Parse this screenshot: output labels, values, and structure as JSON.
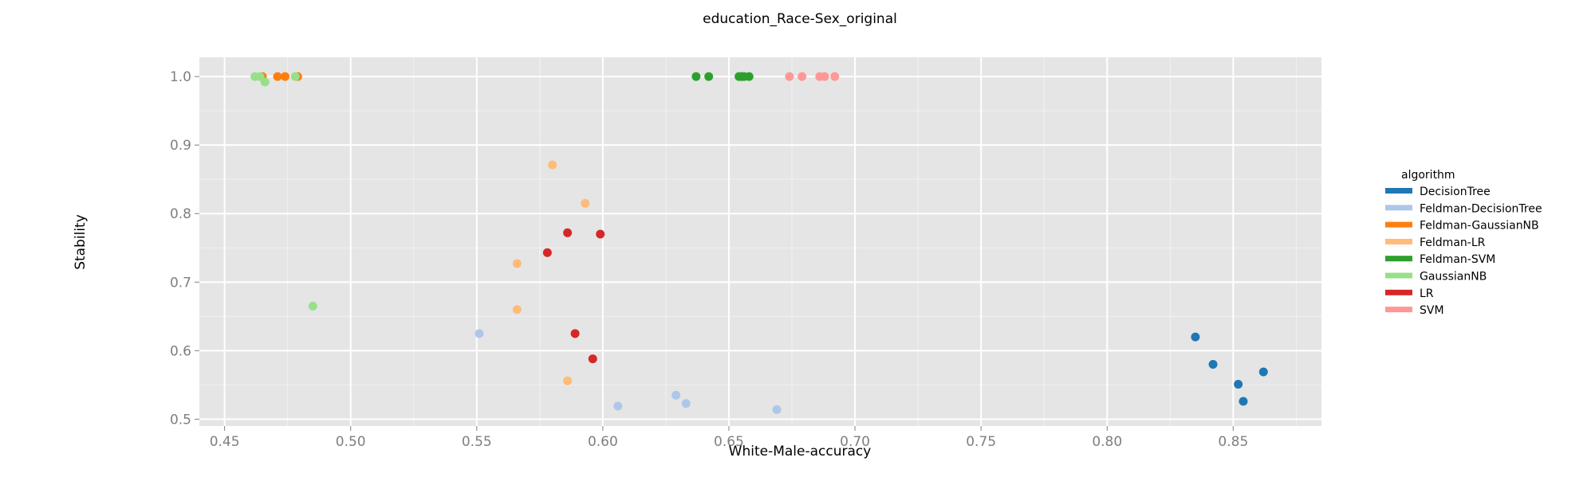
{
  "chart_data": {
    "type": "scatter",
    "title": "education_Race-Sex_original",
    "xlabel": "White-Male-accuracy",
    "ylabel": "Stability",
    "xlim": [
      0.44,
      0.885
    ],
    "ylim": [
      0.49,
      1.028
    ],
    "x_ticks": [
      0.45,
      0.5,
      0.55,
      0.6,
      0.65,
      0.7,
      0.75,
      0.8,
      0.85
    ],
    "x_tick_labels": [
      "0.45",
      "0.50",
      "0.55",
      "0.60",
      "0.65",
      "0.70",
      "0.75",
      "0.80",
      "0.85"
    ],
    "y_ticks": [
      0.5,
      0.6,
      0.7,
      0.8,
      0.9,
      1.0
    ],
    "y_tick_labels": [
      "0.5",
      "0.6",
      "0.7",
      "0.8",
      "0.9",
      "1.0"
    ],
    "grid": true,
    "background": "#e5e5e5",
    "legend_title": "algorithm",
    "legend_position": "right",
    "series": [
      {
        "name": "DecisionTree",
        "color": "#1f77b4",
        "points": [
          [
            0.835,
            0.62
          ],
          [
            0.842,
            0.58
          ],
          [
            0.852,
            0.551
          ],
          [
            0.854,
            0.526
          ],
          [
            0.862,
            0.569
          ]
        ]
      },
      {
        "name": "Feldman-DecisionTree",
        "color": "#aec7e8",
        "points": [
          [
            0.551,
            0.625
          ],
          [
            0.606,
            0.519
          ],
          [
            0.629,
            0.535
          ],
          [
            0.633,
            0.523
          ],
          [
            0.669,
            0.514
          ]
        ]
      },
      {
        "name": "Feldman-GaussianNB",
        "color": "#ff7f0e",
        "points": [
          [
            0.465,
            1.0
          ],
          [
            0.471,
            1.0
          ],
          [
            0.474,
            1.0
          ],
          [
            0.479,
            1.0
          ]
        ]
      },
      {
        "name": "Feldman-LR",
        "color": "#ffbb78",
        "points": [
          [
            0.58,
            0.871
          ],
          [
            0.593,
            0.815
          ],
          [
            0.566,
            0.727
          ],
          [
            0.566,
            0.66
          ],
          [
            0.586,
            0.556
          ]
        ]
      },
      {
        "name": "Feldman-SVM",
        "color": "#2ca02c",
        "points": [
          [
            0.637,
            1.0
          ],
          [
            0.642,
            1.0
          ],
          [
            0.654,
            1.0
          ],
          [
            0.655,
            1.0
          ],
          [
            0.656,
            1.0
          ],
          [
            0.658,
            1.0
          ]
        ]
      },
      {
        "name": "GaussianNB",
        "color": "#98df8a",
        "points": [
          [
            0.462,
            1.0
          ],
          [
            0.464,
            1.0
          ],
          [
            0.466,
            0.992
          ],
          [
            0.478,
            1.0
          ],
          [
            0.485,
            0.665
          ]
        ]
      },
      {
        "name": "LR",
        "color": "#d62728",
        "points": [
          [
            0.586,
            0.772
          ],
          [
            0.599,
            0.77
          ],
          [
            0.578,
            0.743
          ],
          [
            0.589,
            0.625
          ],
          [
            0.596,
            0.588
          ]
        ]
      },
      {
        "name": "SVM",
        "color": "#ff9896",
        "points": [
          [
            0.674,
            1.0
          ],
          [
            0.679,
            1.0
          ],
          [
            0.686,
            1.0
          ],
          [
            0.688,
            1.0
          ],
          [
            0.692,
            1.0
          ]
        ]
      }
    ]
  }
}
